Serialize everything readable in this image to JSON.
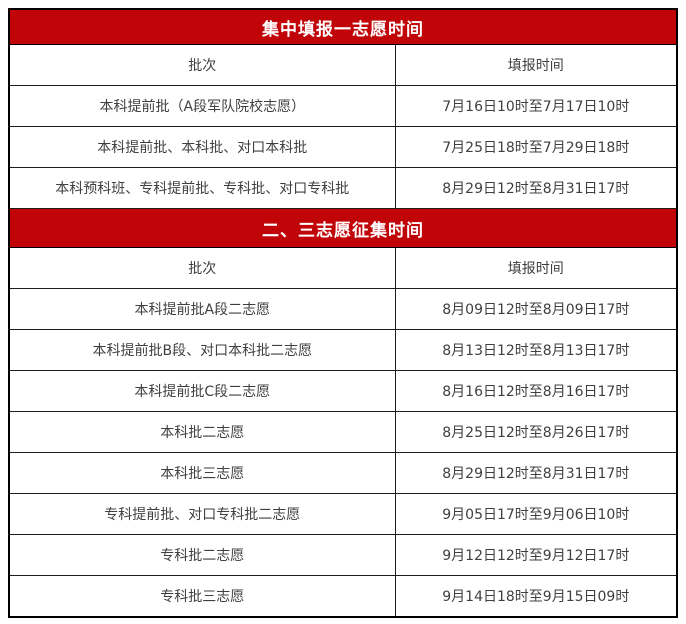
{
  "colors": {
    "band_bg": "#c10408",
    "band_fg": "#ffffff",
    "border": "#1c1c1c",
    "cell_fg": "#3f3f3f"
  },
  "sections": [
    {
      "title": "集中填报一志愿时间",
      "columns": [
        "批次",
        "填报时间"
      ],
      "rows": [
        [
          "本科提前批（A段军队院校志愿）",
          "7月16日10时至7月17日10时"
        ],
        [
          "本科提前批、本科批、对口本科批",
          "7月25日18时至7月29日18时"
        ],
        [
          "本科预科班、专科提前批、专科批、对口专科批",
          "8月29日12时至8月31日17时"
        ]
      ]
    },
    {
      "title": "二、三志愿征集时间",
      "columns": [
        "批次",
        "填报时间"
      ],
      "rows": [
        [
          "本科提前批A段二志愿",
          "8月09日12时至8月09日17时"
        ],
        [
          "本科提前批B段、对口本科批二志愿",
          "8月13日12时至8月13日17时"
        ],
        [
          "本科提前批C段二志愿",
          "8月16日12时至8月16日17时"
        ],
        [
          "本科批二志愿",
          "8月25日12时至8月26日17时"
        ],
        [
          "本科批三志愿",
          "8月29日12时至8月31日17时"
        ],
        [
          "专科提前批、对口专科批二志愿",
          "9月05日17时至9月06日10时"
        ],
        [
          "专科批二志愿",
          "9月12日12时至9月12日17时"
        ],
        [
          "专科批三志愿",
          "9月14日18时至9月15日09时"
        ]
      ]
    }
  ]
}
